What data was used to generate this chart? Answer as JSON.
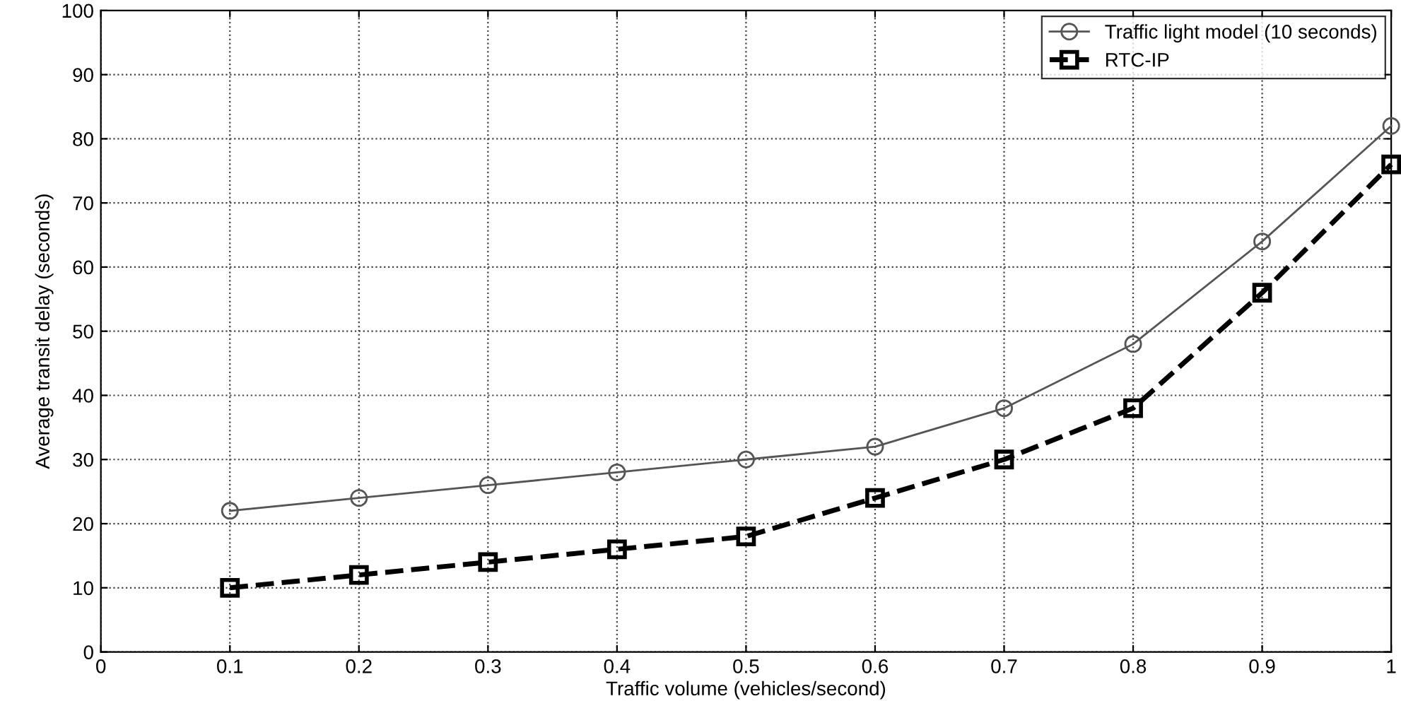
{
  "chart_data": {
    "type": "line",
    "xlabel": "Traffic volume (vehicles/second)",
    "ylabel": "Average transit delay (seconds)",
    "x": [
      0.1,
      0.2,
      0.3,
      0.4,
      0.5,
      0.6,
      0.7,
      0.8,
      0.9,
      1
    ],
    "series": [
      {
        "name": "Traffic light model (10 seconds)",
        "color": "#555555",
        "marker": "circle",
        "line_style": "solid",
        "values": [
          22,
          24,
          26,
          28,
          30,
          32,
          38,
          48,
          64,
          82
        ]
      },
      {
        "name": "RTC-IP",
        "color": "#000000",
        "marker": "square",
        "line_style": "dashed",
        "values": [
          10,
          12,
          14,
          16,
          18,
          24,
          30,
          38,
          56,
          76
        ]
      }
    ],
    "xlim": [
      0,
      1
    ],
    "xticks": [
      0,
      0.1,
      0.2,
      0.3,
      0.4,
      0.5,
      0.6,
      0.7,
      0.8,
      0.9,
      1
    ],
    "ylim": [
      0,
      100
    ],
    "yticks": [
      0,
      10,
      20,
      30,
      40,
      50,
      60,
      70,
      80,
      90,
      100
    ],
    "grid": true,
    "legend": "top right"
  }
}
